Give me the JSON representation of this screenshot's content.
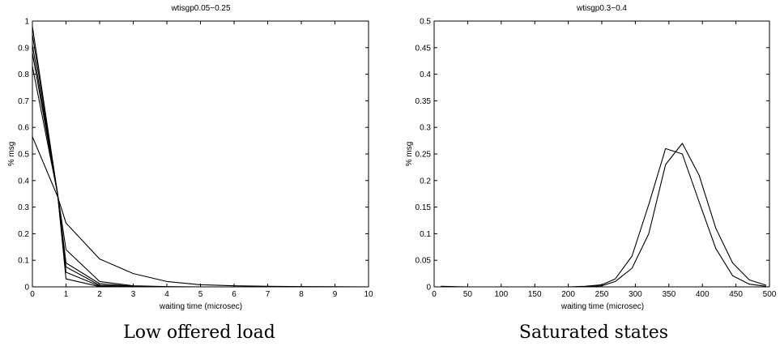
{
  "chart_data": [
    {
      "type": "line",
      "title": "wtisgp0.05−0.25",
      "xlabel": "waiting time (microsec)",
      "ylabel": "% msg",
      "caption": "Low offered load",
      "xlim": [
        0,
        10
      ],
      "ylim": [
        0,
        1
      ],
      "xticks": [
        0,
        1,
        2,
        3,
        4,
        5,
        6,
        7,
        8,
        9,
        10
      ],
      "yticks": [
        0,
        0.1,
        0.2,
        0.3,
        0.4,
        0.5,
        0.6,
        0.7,
        0.8,
        0.9,
        1
      ],
      "ytick_labels": [
        "0",
        "0.1",
        "0.2",
        "0.3",
        "0.4",
        "0.5",
        "0.6",
        "0.7",
        "0.8",
        "0.9",
        "1"
      ],
      "xtick_labels": [
        "0",
        "1",
        "2",
        "3",
        "4",
        "5",
        "6",
        "7",
        "8",
        "9",
        "10"
      ],
      "grid": false,
      "series": [
        {
          "x": [
            0,
            0.75,
            1,
            2,
            3,
            4,
            5,
            6,
            7,
            8,
            9,
            10
          ],
          "y": [
            0.565,
            0.34,
            0.24,
            0.105,
            0.05,
            0.02,
            0.008,
            0.004,
            0.002,
            0.001,
            0.0005,
            0
          ]
        },
        {
          "x": [
            0,
            0.75,
            1,
            2,
            3,
            4,
            5,
            6,
            7,
            8,
            9,
            10
          ],
          "y": [
            0.83,
            0.35,
            0.14,
            0.02,
            0.004,
            0.001,
            0,
            0,
            0,
            0,
            0,
            0
          ]
        },
        {
          "x": [
            0,
            0.75,
            1,
            2,
            3,
            4,
            5,
            6,
            7,
            8,
            9,
            10
          ],
          "y": [
            0.88,
            0.35,
            0.09,
            0.012,
            0.002,
            0,
            0,
            0,
            0,
            0,
            0,
            0
          ]
        },
        {
          "x": [
            0,
            0.75,
            1,
            2,
            3,
            4,
            5,
            6,
            7,
            8,
            9,
            10
          ],
          "y": [
            0.91,
            0.35,
            0.075,
            0.006,
            0.001,
            0,
            0,
            0,
            0,
            0,
            0,
            0
          ]
        },
        {
          "x": [
            0,
            0.75,
            1,
            2,
            3,
            4,
            5,
            6,
            7,
            8,
            9,
            10
          ],
          "y": [
            0.95,
            0.35,
            0.055,
            0.003,
            0,
            0,
            0,
            0,
            0,
            0,
            0,
            0
          ]
        },
        {
          "x": [
            0,
            0.75,
            1,
            2,
            3,
            4,
            5,
            6,
            7,
            8,
            9,
            10
          ],
          "y": [
            0.98,
            0.35,
            0.03,
            0.001,
            0,
            0,
            0,
            0,
            0,
            0,
            0,
            0
          ]
        }
      ]
    },
    {
      "type": "line",
      "title": "wtisgp0.3−0.4",
      "xlabel": "waiting time (microsec)",
      "ylabel": "% msg",
      "caption": "Saturated states",
      "xlim": [
        0,
        500
      ],
      "ylim": [
        0,
        0.5
      ],
      "xticks": [
        0,
        50,
        100,
        150,
        200,
        250,
        300,
        350,
        400,
        450,
        500
      ],
      "yticks": [
        0,
        0.05,
        0.1,
        0.15,
        0.2,
        0.25,
        0.3,
        0.35,
        0.4,
        0.45,
        0.5
      ],
      "ytick_labels": [
        "0",
        "0.05",
        "0.1",
        "0.15",
        "0.2",
        "0.25",
        "0.3",
        "0.35",
        "0.4",
        "0.45",
        "0.5"
      ],
      "xtick_labels": [
        "0",
        "50",
        "100",
        "150",
        "200",
        "250",
        "300",
        "350",
        "400",
        "450",
        "500"
      ],
      "grid": false,
      "series": [
        {
          "x": [
            10,
            50,
            100,
            150,
            200,
            225,
            250,
            270,
            295,
            320,
            345,
            370,
            395,
            420,
            445,
            470,
            495
          ],
          "y": [
            0.001,
            0,
            0,
            0,
            0,
            0.001,
            0.004,
            0.015,
            0.058,
            0.155,
            0.26,
            0.25,
            0.16,
            0.072,
            0.021,
            0.005,
            0.001
          ]
        },
        {
          "x": [
            10,
            50,
            100,
            150,
            200,
            225,
            250,
            270,
            295,
            320,
            345,
            370,
            395,
            420,
            445,
            470,
            495
          ],
          "y": [
            0,
            0,
            0,
            0,
            0,
            0,
            0.002,
            0.01,
            0.035,
            0.1,
            0.23,
            0.27,
            0.21,
            0.11,
            0.045,
            0.013,
            0.003
          ]
        }
      ]
    }
  ]
}
